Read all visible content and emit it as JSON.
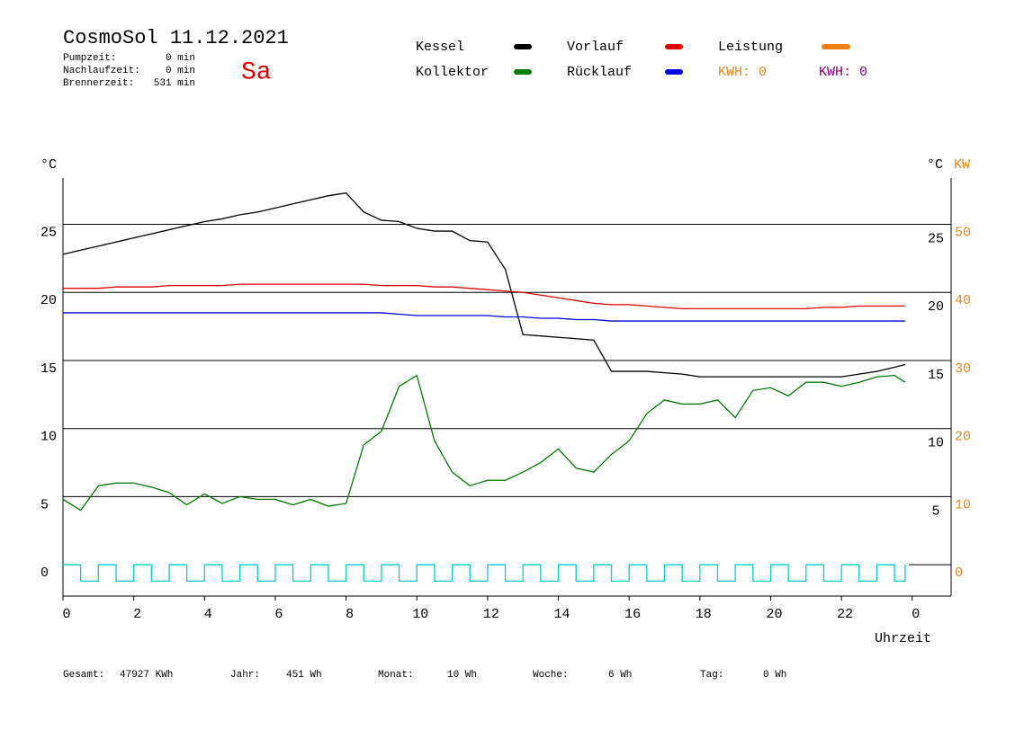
{
  "chart_data": {
    "type": "line",
    "title": "CosmoSol 11.12.2021",
    "day": "Sa",
    "status": [
      {
        "label": "Pumpzeit:",
        "value": "0 min"
      },
      {
        "label": "Nachlaufzeit:",
        "value": "0 min"
      },
      {
        "label": "Brennerzeit:",
        "value": "531 min"
      }
    ],
    "kwh": [
      {
        "label": "KWH: 0",
        "color": "#e08a1e"
      },
      {
        "label": "KWH: 0",
        "color": "#800080"
      }
    ],
    "legend_extra": [
      {
        "name": "Leistung",
        "color": "#f08010"
      }
    ],
    "y_unit": "°C",
    "y_unit_right": "°C",
    "y2_unit": "KW",
    "x_label": "Uhrzeit",
    "xlim": [
      0,
      25.1
    ],
    "xticks": [
      0,
      2,
      4,
      6,
      8,
      10,
      12,
      14,
      16,
      18,
      20,
      22,
      {
        "value": 24,
        "label": "0"
      }
    ],
    "ylim": [
      -2.3,
      28.4
    ],
    "yticks": [
      0,
      5,
      10,
      15,
      20,
      25
    ],
    "yticks_right": [
      5,
      10,
      15,
      20,
      25
    ],
    "y2lim": [
      -4.6,
      56.8
    ],
    "y2ticks": [
      0,
      10,
      20,
      30,
      40,
      50
    ],
    "y2color": "#e08a1e",
    "grid": true,
    "x": [
      0,
      0.5,
      1,
      1.5,
      2,
      2.5,
      3,
      3.5,
      4,
      4.5,
      5,
      5.5,
      6,
      6.5,
      7,
      7.5,
      8,
      8.5,
      9,
      9.5,
      10,
      10.5,
      11,
      11.5,
      12,
      12.5,
      13,
      13.5,
      14,
      14.5,
      15,
      15.5,
      16,
      16.5,
      17,
      17.5,
      18,
      18.5,
      19,
      19.5,
      20,
      20.5,
      21,
      21.5,
      22,
      22.5,
      23,
      23.5,
      23.8
    ],
    "series": [
      {
        "name": "Kessel",
        "color": "#000000",
        "values": [
          22.8,
          23.1,
          23.4,
          23.7,
          24.0,
          24.3,
          24.6,
          24.9,
          25.2,
          25.4,
          25.7,
          25.9,
          26.2,
          26.5,
          26.8,
          27.1,
          27.3,
          25.9,
          25.3,
          25.2,
          24.7,
          24.5,
          24.5,
          23.8,
          23.7,
          21.7,
          16.9,
          16.8,
          16.7,
          16.6,
          16.5,
          14.2,
          14.2,
          14.2,
          14.1,
          14.0,
          13.8,
          13.8,
          13.8,
          13.8,
          13.8,
          13.8,
          13.8,
          13.8,
          13.8,
          14.0,
          14.2,
          14.5,
          14.7
        ]
      },
      {
        "name": "Kollektor",
        "color": "#007a00",
        "values": [
          4.8,
          4.0,
          5.8,
          6.0,
          6.0,
          5.7,
          5.3,
          4.4,
          5.2,
          4.5,
          5.0,
          4.8,
          4.8,
          4.4,
          4.8,
          4.3,
          4.5,
          8.8,
          9.8,
          13.1,
          13.9,
          9.1,
          6.8,
          5.8,
          6.2,
          6.2,
          6.8,
          7.5,
          8.5,
          7.1,
          6.8,
          8.1,
          9.1,
          11.1,
          12.1,
          11.8,
          11.8,
          12.1,
          10.8,
          12.8,
          13.0,
          12.4,
          13.4,
          13.4,
          13.1,
          13.4,
          13.8,
          13.9,
          13.4
        ]
      },
      {
        "name": "Vorlauf",
        "color": "#e00000",
        "values": [
          20.3,
          20.3,
          20.3,
          20.4,
          20.4,
          20.4,
          20.5,
          20.5,
          20.5,
          20.5,
          20.6,
          20.6,
          20.6,
          20.6,
          20.6,
          20.6,
          20.6,
          20.6,
          20.5,
          20.5,
          20.5,
          20.4,
          20.4,
          20.3,
          20.2,
          20.1,
          20.0,
          19.8,
          19.6,
          19.4,
          19.2,
          19.1,
          19.1,
          19.0,
          18.9,
          18.8,
          18.8,
          18.8,
          18.8,
          18.8,
          18.8,
          18.8,
          18.8,
          18.9,
          18.9,
          19.0,
          19.0,
          19.0,
          19.0
        ]
      },
      {
        "name": "Rücklauf",
        "color": "#0000e0",
        "values": [
          18.5,
          18.5,
          18.5,
          18.5,
          18.5,
          18.5,
          18.5,
          18.5,
          18.5,
          18.5,
          18.5,
          18.5,
          18.5,
          18.5,
          18.5,
          18.5,
          18.5,
          18.5,
          18.5,
          18.4,
          18.3,
          18.3,
          18.3,
          18.3,
          18.3,
          18.2,
          18.2,
          18.1,
          18.1,
          18.0,
          18.0,
          17.9,
          17.9,
          17.9,
          17.9,
          17.9,
          17.9,
          17.9,
          17.9,
          17.9,
          17.9,
          17.9,
          17.9,
          17.9,
          17.9,
          17.9,
          17.9,
          17.9,
          17.9
        ]
      },
      {
        "color": "#00d0d0",
        "step": true,
        "values": [
          0,
          -1.2,
          0,
          -1.2,
          0,
          -1.2,
          0,
          -1.2,
          0,
          -1.2,
          0,
          -1.2,
          0,
          -1.2,
          0,
          -1.2,
          0,
          -1.2,
          0,
          -1.2,
          0,
          -1.2,
          0,
          -1.2,
          0,
          -1.2,
          0,
          -1.2,
          0,
          -1.2,
          0,
          -1.2,
          0,
          -1.2,
          0,
          -1.2,
          0,
          -1.2,
          0,
          -1.2,
          0,
          -1.2,
          0,
          -1.2,
          0,
          -1.2,
          0,
          -1.2,
          0
        ]
      }
    ],
    "footer": [
      {
        "label": "Gesamt:",
        "value": "47927 KWh"
      },
      {
        "label": "Jahr:",
        "value": "451 Wh"
      },
      {
        "label": "Monat:",
        "value": "10 Wh"
      },
      {
        "label": "Woche:",
        "value": "6 Wh"
      },
      {
        "label": "Tag:",
        "value": "0 Wh"
      }
    ]
  }
}
